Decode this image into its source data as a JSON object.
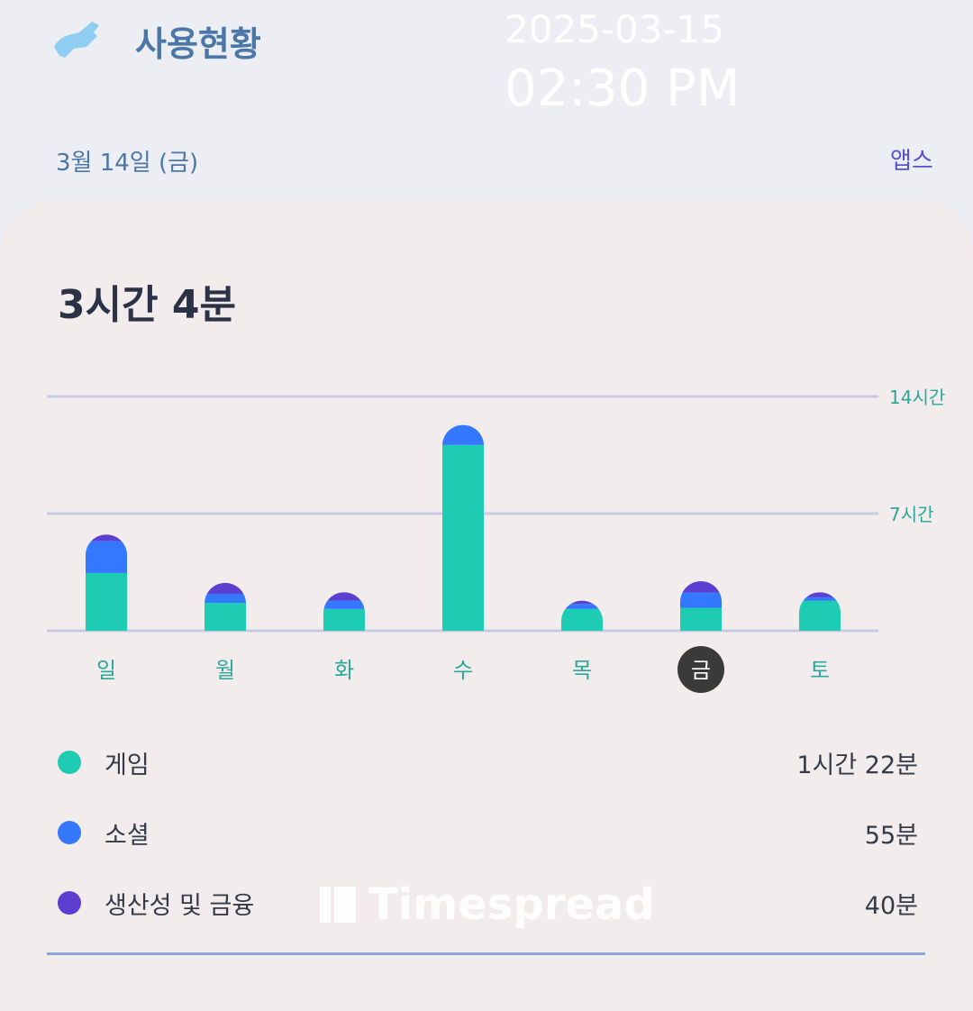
{
  "header": {
    "title": "사용현황",
    "date_overlay": "2025-03-15",
    "time_overlay": "02:30 PM",
    "day_label": "3월 14일 (금)",
    "apps_link": "앱스"
  },
  "summary": {
    "total": "3시간 4분"
  },
  "colors": {
    "game": "#1ecbb3",
    "social": "#3478ff",
    "productivity": "#5b3fd0",
    "grid": "#c5cbe6",
    "axis_label": "#2aa89a",
    "selected_day_bg": "#3a3a3a"
  },
  "chart_data": {
    "type": "bar",
    "stacked": true,
    "categories": [
      "일",
      "월",
      "화",
      "수",
      "목",
      "금",
      "토"
    ],
    "selected": "금",
    "y_ticks": [
      {
        "value": 7,
        "label": "7시간"
      },
      {
        "value": 14,
        "label": "14시간"
      }
    ],
    "ylim": [
      0,
      14
    ],
    "grid": true,
    "series": [
      {
        "name": "게임",
        "values": [
          3.45,
          1.67,
          1.3,
          11.1,
          1.3,
          1.37,
          1.8
        ]
      },
      {
        "name": "소셜",
        "values": [
          1.9,
          0.54,
          0.5,
          1.2,
          0.3,
          0.92,
          0.2
        ]
      },
      {
        "name": "생산성 및 금융",
        "values": [
          0.4,
          0.65,
          0.5,
          0.0,
          0.2,
          0.67,
          0.3
        ]
      }
    ]
  },
  "legend": [
    {
      "name": "게임",
      "value": "1시간 22분"
    },
    {
      "name": "소셜",
      "value": "55분"
    },
    {
      "name": "생산성 및 금융",
      "value": "40분"
    }
  ],
  "watermark": "Timespread"
}
